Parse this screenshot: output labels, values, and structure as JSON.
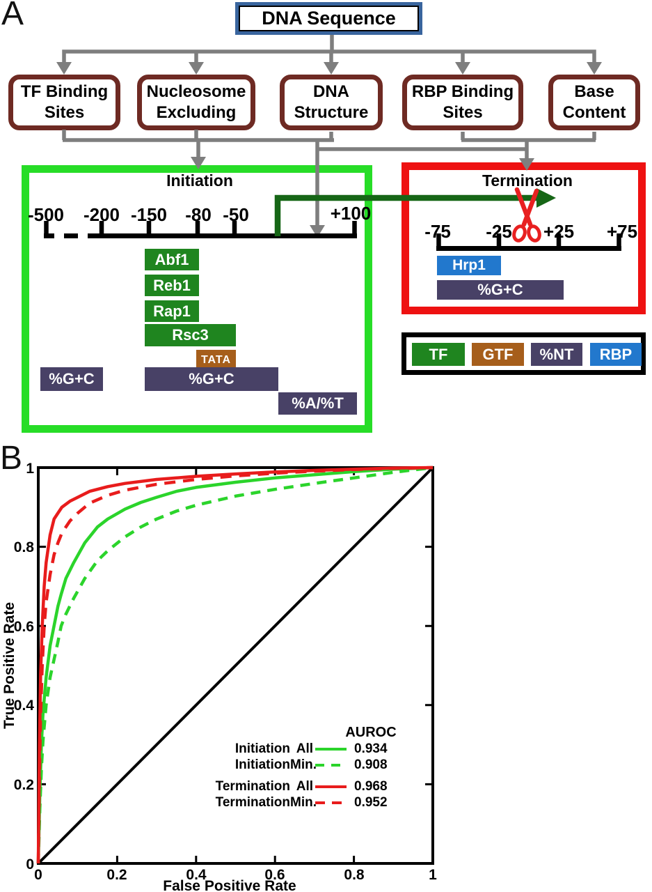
{
  "colors": {
    "root_box_border": "#39659e",
    "feature_box_border": "#6e2a23",
    "initiation_box_border": "#27dd27",
    "termination_box_border": "#ee1111",
    "connector_gray": "#7e7e7e",
    "tf_green": "#1f851f",
    "gtf_brown": "#a65e1b",
    "nt_purple": "#484166",
    "rbp_blue": "#2278cd",
    "transfer_arrow_green": "#166616",
    "scissors_red": "#e82020",
    "roc_green": "#2bd42b",
    "roc_red": "#e81c1c"
  },
  "panel_a": {
    "label": "A",
    "root_box": "DNA Sequence",
    "feature_boxes": [
      {
        "line1": "TF Binding",
        "line2": "Sites"
      },
      {
        "line1": "Nucleosome",
        "line2": "Excluding"
      },
      {
        "line1": "DNA",
        "line2": "Structure"
      },
      {
        "line1": "RBP Binding",
        "line2": "Sites"
      },
      {
        "line1": "Base",
        "line2": "Content"
      }
    ],
    "initiation": {
      "title": "Initiation",
      "axis_labels": [
        "-500",
        "-200",
        "-150",
        "-80",
        "-50",
        "+100"
      ],
      "bars": [
        {
          "label": "Abf1",
          "type": "TF"
        },
        {
          "label": "Reb1",
          "type": "TF"
        },
        {
          "label": "Rap1",
          "type": "TF"
        },
        {
          "label": "Rsc3",
          "type": "TF"
        },
        {
          "label": "TATA",
          "type": "GTF"
        },
        {
          "label": "%G+C",
          "type": "%NT"
        },
        {
          "label": "%G+C",
          "type": "%NT"
        },
        {
          "label": "%A/%T",
          "type": "%NT"
        }
      ]
    },
    "termination": {
      "title": "Termination",
      "axis_labels": [
        "-75",
        "-25",
        "+25",
        "+75"
      ],
      "bars": [
        {
          "label": "Hrp1",
          "type": "RBP"
        },
        {
          "label": "%G+C",
          "type": "%NT"
        }
      ]
    },
    "type_legend": {
      "items": [
        {
          "label": "TF",
          "color": "#1f851f"
        },
        {
          "label": "GTF",
          "color": "#a65e1b"
        },
        {
          "label": "%NT",
          "color": "#484166"
        },
        {
          "label": "RBP",
          "color": "#2278cd"
        }
      ]
    }
  },
  "panel_b": {
    "label": "B",
    "xlabel": "False Positive Rate",
    "ylabel": "True Positive Rate",
    "x_ticks": [
      "0",
      "0.2",
      "0.4",
      "0.6",
      "0.8",
      "1"
    ],
    "y_ticks": [
      "0",
      "0.2",
      "0.4",
      "0.6",
      "0.8",
      "1"
    ],
    "legend": {
      "header": "AUROC",
      "rows": [
        {
          "name": "Initiation",
          "variant": "All",
          "auroc": "0.934"
        },
        {
          "name": "Initiation",
          "variant": "Min.",
          "auroc": "0.908"
        },
        {
          "name": "Termination",
          "variant": "All",
          "auroc": "0.968"
        },
        {
          "name": "Termination",
          "variant": "Min.",
          "auroc": "0.952"
        }
      ]
    },
    "chart_data": {
      "type": "line",
      "xlabel": "False Positive Rate",
      "ylabel": "True Positive Rate",
      "xlim": [
        0,
        1
      ],
      "ylim": [
        0,
        1
      ],
      "grid": false,
      "legend_position": "lower right",
      "reference_line": {
        "from": [
          0,
          0
        ],
        "to": [
          1,
          1
        ],
        "color": "#000000"
      },
      "series": [
        {
          "id": "initiation-all",
          "name": "Initiation All",
          "auroc": 0.934,
          "color": "#2bd42b",
          "dash": null,
          "points": [
            [
              0,
              0
            ],
            [
              0.004,
              0.18
            ],
            [
              0.008,
              0.3
            ],
            [
              0.012,
              0.38
            ],
            [
              0.02,
              0.47
            ],
            [
              0.03,
              0.55
            ],
            [
              0.05,
              0.65
            ],
            [
              0.058,
              0.68
            ],
            [
              0.07,
              0.72
            ],
            [
              0.09,
              0.76
            ],
            [
              0.118,
              0.81
            ],
            [
              0.15,
              0.85
            ],
            [
              0.176,
              0.87
            ],
            [
              0.22,
              0.895
            ],
            [
              0.26,
              0.912
            ],
            [
              0.3,
              0.925
            ],
            [
              0.35,
              0.94
            ],
            [
              0.4,
              0.95
            ],
            [
              0.5,
              0.963
            ],
            [
              0.6,
              0.974
            ],
            [
              0.7,
              0.982
            ],
            [
              0.8,
              0.99
            ],
            [
              0.9,
              0.996
            ],
            [
              1,
              1
            ]
          ]
        },
        {
          "id": "initiation-min",
          "name": "Initiation Min.",
          "auroc": 0.908,
          "color": "#2bd42b",
          "dash": "14 10",
          "points": [
            [
              0,
              0
            ],
            [
              0.004,
              0.14
            ],
            [
              0.008,
              0.24
            ],
            [
              0.012,
              0.31
            ],
            [
              0.02,
              0.4
            ],
            [
              0.03,
              0.47
            ],
            [
              0.05,
              0.56
            ],
            [
              0.058,
              0.6
            ],
            [
              0.07,
              0.63
            ],
            [
              0.09,
              0.67
            ],
            [
              0.118,
              0.72
            ],
            [
              0.15,
              0.765
            ],
            [
              0.176,
              0.79
            ],
            [
              0.22,
              0.825
            ],
            [
              0.26,
              0.85
            ],
            [
              0.3,
              0.87
            ],
            [
              0.35,
              0.89
            ],
            [
              0.4,
              0.905
            ],
            [
              0.5,
              0.928
            ],
            [
              0.6,
              0.945
            ],
            [
              0.7,
              0.96
            ],
            [
              0.8,
              0.974
            ],
            [
              0.9,
              0.988
            ],
            [
              1,
              1
            ]
          ]
        },
        {
          "id": "termination-all",
          "name": "Termination All",
          "auroc": 0.968,
          "color": "#e81c1c",
          "dash": null,
          "points": [
            [
              0,
              0
            ],
            [
              0.003,
              0.3
            ],
            [
              0.006,
              0.48
            ],
            [
              0.01,
              0.6
            ],
            [
              0.015,
              0.7
            ],
            [
              0.02,
              0.76
            ],
            [
              0.03,
              0.83
            ],
            [
              0.04,
              0.87
            ],
            [
              0.05,
              0.885
            ],
            [
              0.06,
              0.9
            ],
            [
              0.08,
              0.915
            ],
            [
              0.1,
              0.925
            ],
            [
              0.13,
              0.94
            ],
            [
              0.176,
              0.952
            ],
            [
              0.22,
              0.96
            ],
            [
              0.3,
              0.97
            ],
            [
              0.4,
              0.978
            ],
            [
              0.5,
              0.984
            ],
            [
              0.6,
              0.989
            ],
            [
              0.7,
              0.993
            ],
            [
              0.8,
              0.996
            ],
            [
              0.9,
              0.999
            ],
            [
              1,
              1
            ]
          ]
        },
        {
          "id": "termination-min",
          "name": "Termination Min.",
          "auroc": 0.952,
          "color": "#e81c1c",
          "dash": "16 11",
          "points": [
            [
              0,
              0
            ],
            [
              0.003,
              0.22
            ],
            [
              0.006,
              0.38
            ],
            [
              0.01,
              0.5
            ],
            [
              0.015,
              0.6
            ],
            [
              0.02,
              0.66
            ],
            [
              0.03,
              0.73
            ],
            [
              0.04,
              0.78
            ],
            [
              0.05,
              0.81
            ],
            [
              0.06,
              0.835
            ],
            [
              0.08,
              0.865
            ],
            [
              0.1,
              0.885
            ],
            [
              0.13,
              0.91
            ],
            [
              0.176,
              0.93
            ],
            [
              0.22,
              0.943
            ],
            [
              0.3,
              0.958
            ],
            [
              0.4,
              0.97
            ],
            [
              0.5,
              0.979
            ],
            [
              0.6,
              0.986
            ],
            [
              0.7,
              0.991
            ],
            [
              0.8,
              0.995
            ],
            [
              0.9,
              0.998
            ],
            [
              1,
              1
            ]
          ]
        }
      ]
    }
  }
}
